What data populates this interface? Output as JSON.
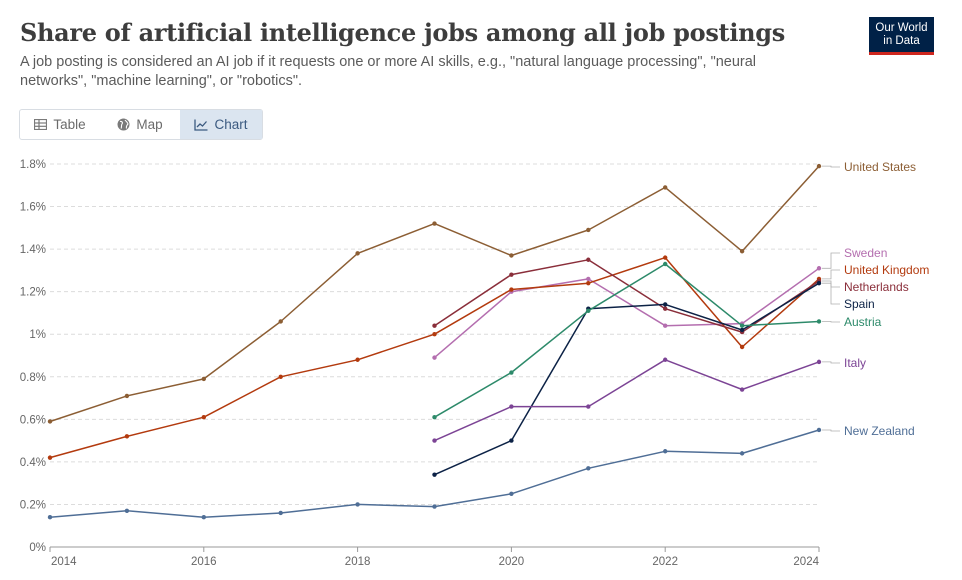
{
  "header": {
    "title": "Share of artificial intelligence jobs among all job postings",
    "subtitle": "A job posting is considered an AI job if it requests one or more AI skills, e.g., \"natural language processing\", \"neural networks\", \"machine learning\", or \"robotics\".",
    "logo_line1": "Our World",
    "logo_line2": "in Data"
  },
  "tabs": [
    {
      "label": "Table",
      "icon": "table-icon",
      "active": false
    },
    {
      "label": "Map",
      "icon": "globe-icon",
      "active": false
    },
    {
      "label": "Chart",
      "icon": "line-chart-icon",
      "active": true
    }
  ],
  "chart_data": {
    "type": "line",
    "title": "Share of artificial intelligence jobs among all job postings",
    "xlabel": "",
    "ylabel": "",
    "xlim": [
      2014,
      2024
    ],
    "ylim": [
      0,
      1.8
    ],
    "x_ticks": [
      "2014",
      "2016",
      "2018",
      "2020",
      "2022",
      "2024"
    ],
    "y_ticks": [
      "0%",
      "0.2%",
      "0.4%",
      "0.6%",
      "0.8%",
      "1%",
      "1.2%",
      "1.4%",
      "1.6%",
      "1.8%"
    ],
    "y_tick_values": [
      0,
      0.2,
      0.4,
      0.6,
      0.8,
      1.0,
      1.2,
      1.4,
      1.6,
      1.8
    ],
    "grid": true,
    "legend_placement": "right, labels at line ends",
    "series": [
      {
        "name": "United States",
        "color": "#8c5e34",
        "x": [
          2014,
          2015,
          2016,
          2017,
          2018,
          2019,
          2020,
          2021,
          2022,
          2023,
          2024
        ],
        "values": [
          0.59,
          0.71,
          0.79,
          1.06,
          1.38,
          1.52,
          1.37,
          1.49,
          1.69,
          1.39,
          1.79
        ]
      },
      {
        "name": "Sweden",
        "color": "#b46eaf",
        "x": [
          2019,
          2020,
          2021,
          2022,
          2023,
          2024
        ],
        "values": [
          0.89,
          1.2,
          1.26,
          1.04,
          1.05,
          1.31
        ]
      },
      {
        "name": "United Kingdom",
        "color": "#b33a0e",
        "x": [
          2014,
          2015,
          2016,
          2017,
          2018,
          2019,
          2020,
          2021,
          2022,
          2023,
          2024
        ],
        "values": [
          0.42,
          0.52,
          0.61,
          0.8,
          0.88,
          1.0,
          1.21,
          1.24,
          1.36,
          0.94,
          1.26
        ]
      },
      {
        "name": "Netherlands",
        "color": "#8a2e3a",
        "x": [
          2019,
          2020,
          2021,
          2022,
          2023,
          2024
        ],
        "values": [
          1.04,
          1.28,
          1.35,
          1.12,
          1.01,
          1.25
        ]
      },
      {
        "name": "Spain",
        "color": "#0c2246",
        "x": [
          2019,
          2020,
          2021,
          2022,
          2023,
          2024
        ],
        "values": [
          0.34,
          0.5,
          1.12,
          1.14,
          1.02,
          1.24
        ]
      },
      {
        "name": "Austria",
        "color": "#2d8a6a",
        "x": [
          2019,
          2020,
          2021,
          2022,
          2023,
          2024
        ],
        "values": [
          0.61,
          0.82,
          1.11,
          1.33,
          1.04,
          1.06
        ]
      },
      {
        "name": "Italy",
        "color": "#7c4495",
        "x": [
          2019,
          2020,
          2021,
          2022,
          2023,
          2024
        ],
        "values": [
          0.5,
          0.66,
          0.66,
          0.88,
          0.74,
          0.87
        ]
      },
      {
        "name": "New Zealand",
        "color": "#4f6e96",
        "x": [
          2014,
          2015,
          2016,
          2017,
          2018,
          2019,
          2020,
          2021,
          2022,
          2023,
          2024
        ],
        "values": [
          0.14,
          0.17,
          0.14,
          0.16,
          0.2,
          0.19,
          0.25,
          0.37,
          0.45,
          0.44,
          0.55
        ]
      }
    ]
  }
}
